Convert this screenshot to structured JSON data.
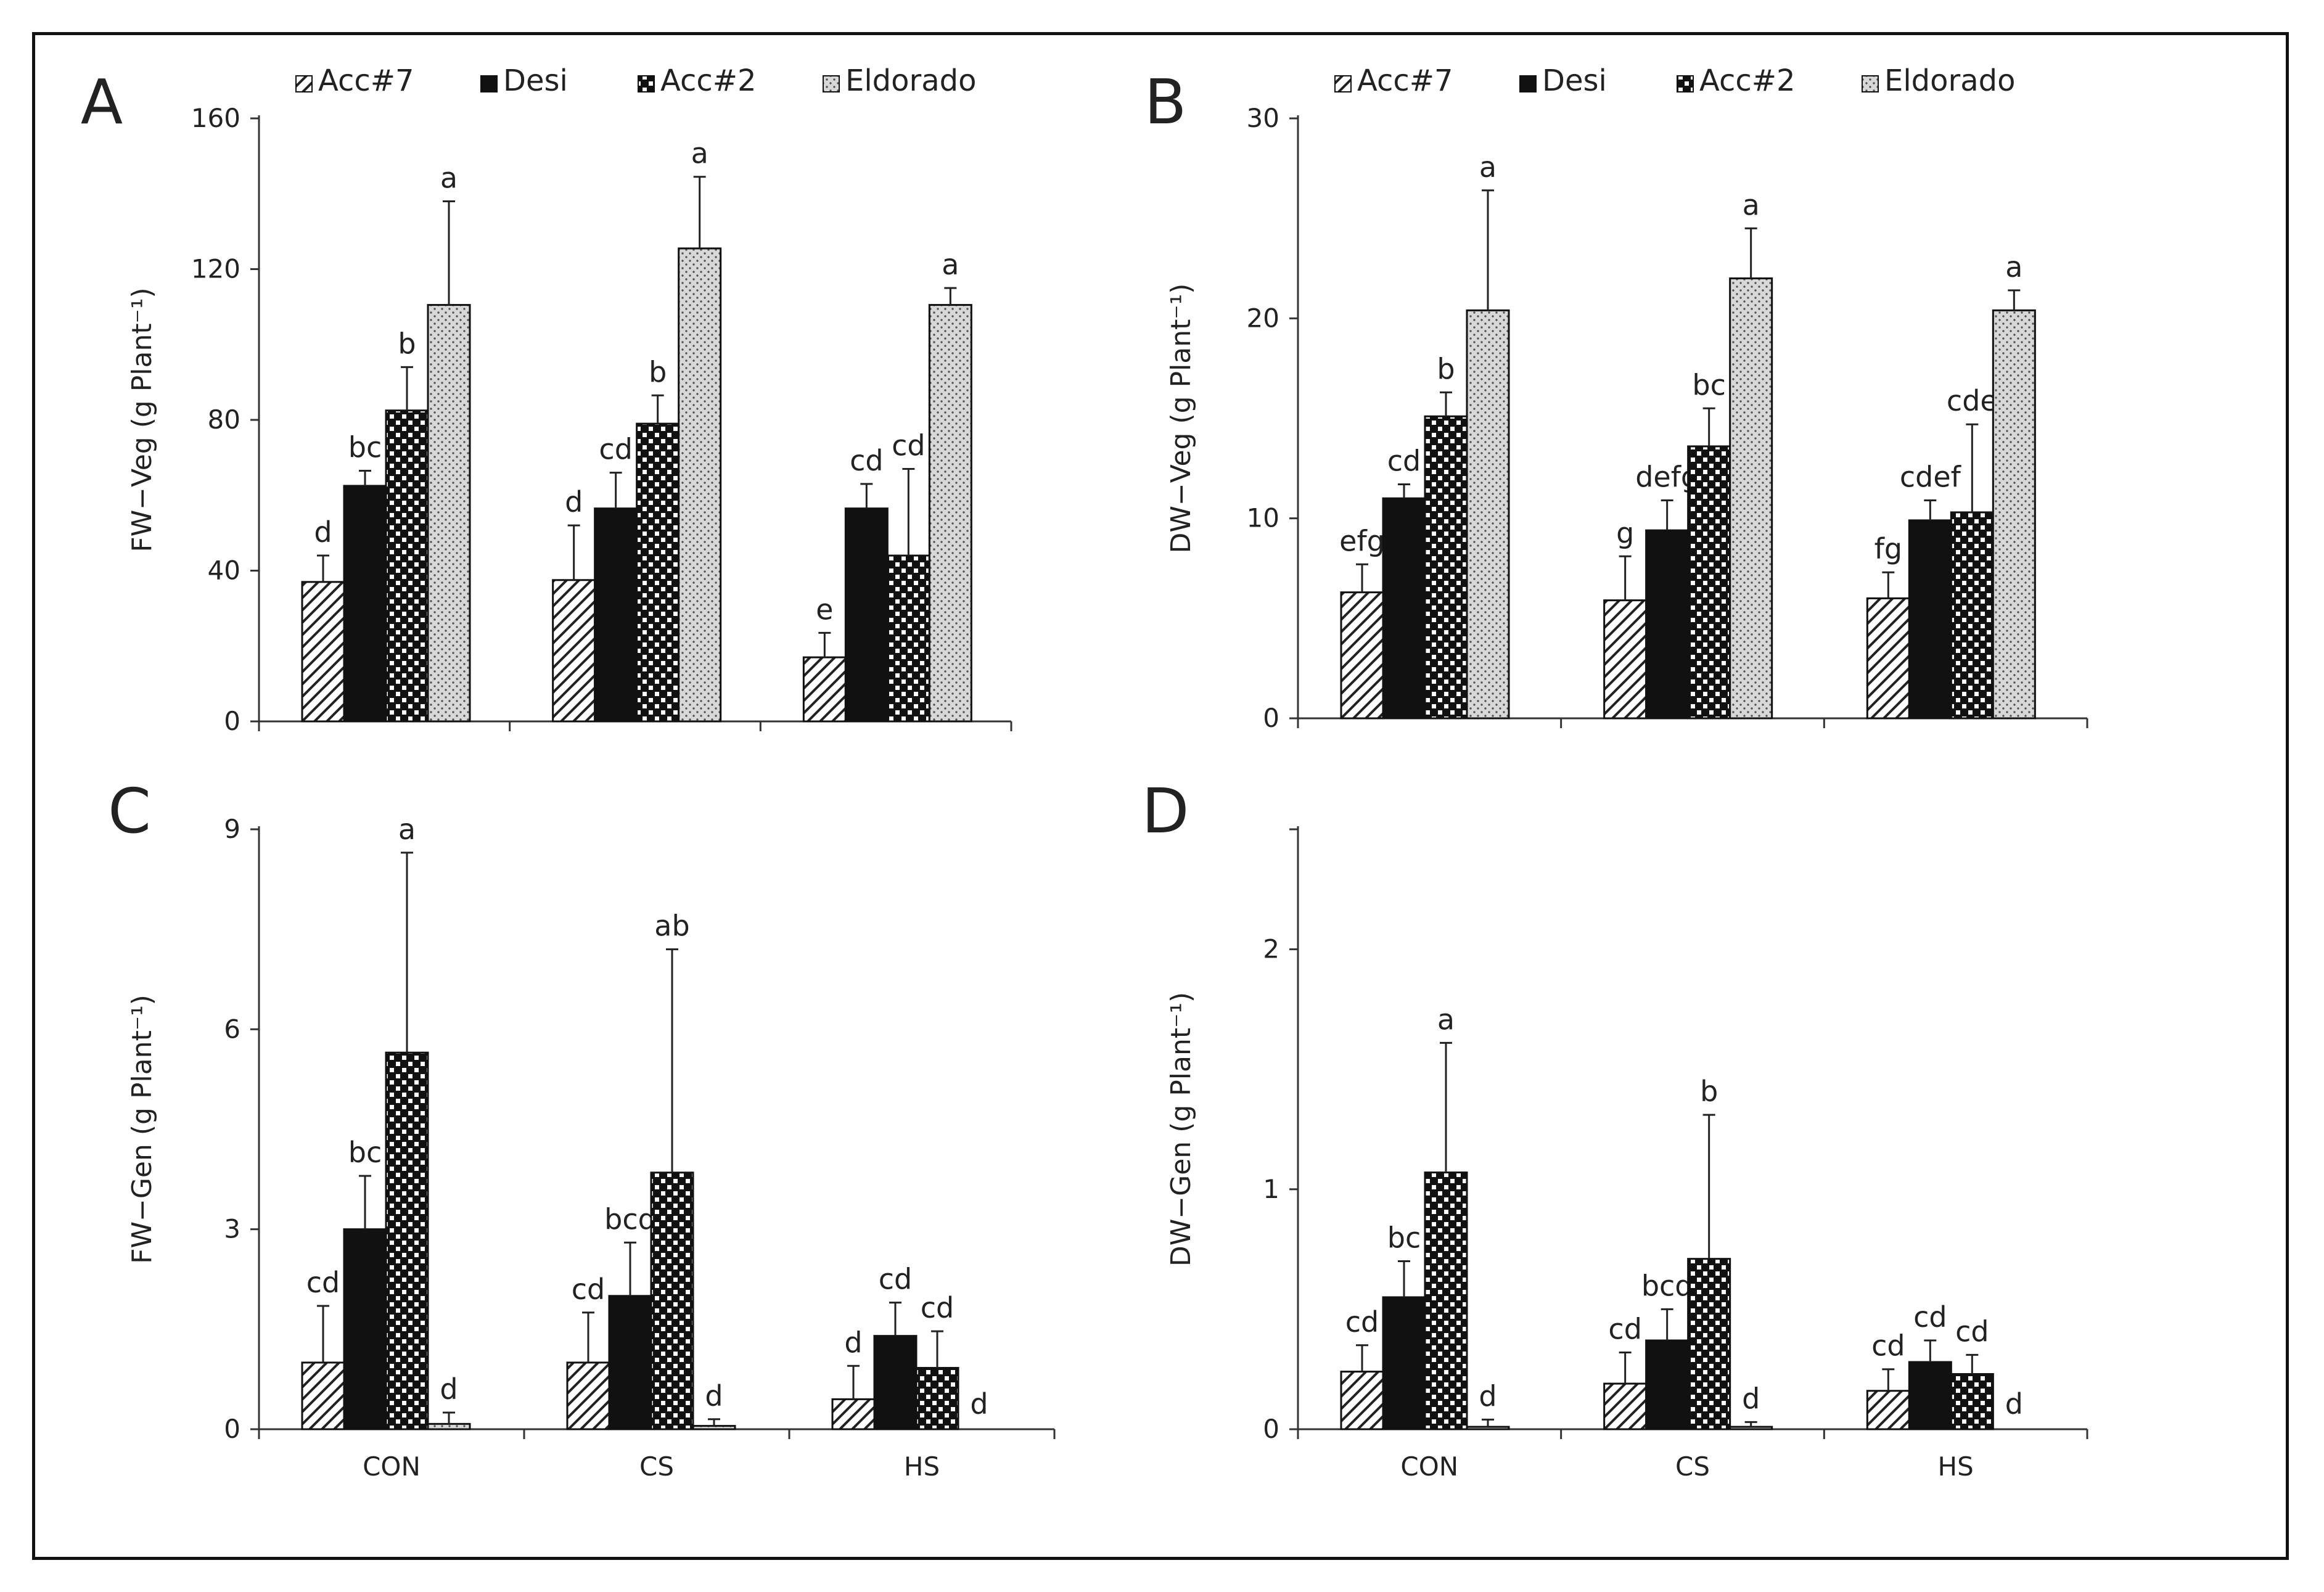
{
  "chart_data": [
    {
      "panel": "A",
      "type": "bar",
      "categories": [
        "CON",
        "CS",
        "HS"
      ],
      "ylabel": "FW−Veg (g Plant⁻¹)",
      "ylim": [
        0,
        160
      ],
      "yticks": [
        0,
        40,
        80,
        120,
        160
      ],
      "show_xlabels": false,
      "series": [
        {
          "name": "Acc#7",
          "values": [
            37,
            37.5,
            17
          ],
          "errors": [
            7,
            14.5,
            6.5
          ],
          "letters": [
            "d",
            "d",
            "e"
          ]
        },
        {
          "name": "Desi",
          "values": [
            62.5,
            56.5,
            56.5
          ],
          "errors": [
            4,
            9.5,
            6.5
          ],
          "letters": [
            "bc",
            "cd",
            "cd"
          ]
        },
        {
          "name": "Acc#2",
          "values": [
            82.5,
            79,
            44
          ],
          "errors": [
            11.5,
            7.5,
            23
          ],
          "letters": [
            "b",
            "b",
            "cd"
          ]
        },
        {
          "name": "Eldorado",
          "values": [
            110.5,
            125.5,
            110.5
          ],
          "errors": [
            27.5,
            19,
            4.5
          ],
          "letters": [
            "a",
            "a",
            "a"
          ]
        }
      ]
    },
    {
      "panel": "B",
      "type": "bar",
      "categories": [
        "CON",
        "CS",
        "HS"
      ],
      "ylabel": "DW−Veg (g Plant⁻¹)",
      "ylim": [
        0,
        30
      ],
      "yticks": [
        0,
        10,
        20,
        30
      ],
      "show_xlabels": false,
      "series": [
        {
          "name": "Acc#7",
          "values": [
            6.3,
            5.9,
            6.0
          ],
          "errors": [
            1.4,
            2.2,
            1.3
          ],
          "letters": [
            "efg",
            "g",
            "fg"
          ]
        },
        {
          "name": "Desi",
          "values": [
            11.0,
            9.4,
            9.9
          ],
          "errors": [
            0.7,
            1.5,
            1.0
          ],
          "letters": [
            "cd",
            "defg",
            "cdef"
          ]
        },
        {
          "name": "Acc#2",
          "values": [
            15.1,
            13.6,
            10.3
          ],
          "errors": [
            1.2,
            1.9,
            4.4
          ],
          "letters": [
            "b",
            "bc",
            "cde"
          ]
        },
        {
          "name": "Eldorado",
          "values": [
            20.4,
            22.0,
            20.4
          ],
          "errors": [
            6.0,
            2.5,
            1.0
          ],
          "letters": [
            "a",
            "a",
            "a"
          ]
        }
      ]
    },
    {
      "panel": "C",
      "type": "bar",
      "categories": [
        "CON",
        "CS",
        "HS"
      ],
      "ylabel": "FW−Gen (g Plant⁻¹)",
      "ylim": [
        0,
        9
      ],
      "yticks": [
        0,
        3,
        6,
        9
      ],
      "show_xlabels": true,
      "series": [
        {
          "name": "Acc#7",
          "values": [
            1.0,
            1.0,
            0.45
          ],
          "errors": [
            0.85,
            0.75,
            0.5
          ],
          "letters": [
            "cd",
            "cd",
            "d"
          ]
        },
        {
          "name": "Desi",
          "values": [
            3.0,
            2.0,
            1.4
          ],
          "errors": [
            0.8,
            0.8,
            0.5
          ],
          "letters": [
            "bc",
            "bcd",
            "cd"
          ]
        },
        {
          "name": "Acc#2",
          "values": [
            5.65,
            3.85,
            0.92
          ],
          "errors": [
            3.0,
            3.35,
            0.55
          ],
          "letters": [
            "a",
            "ab",
            "cd"
          ]
        },
        {
          "name": "Eldorado",
          "values": [
            0.08,
            0.05,
            0.0
          ],
          "errors": [
            0.17,
            0.1,
            0.0
          ],
          "letters": [
            "d",
            "d",
            "d"
          ]
        }
      ]
    },
    {
      "panel": "D",
      "type": "bar",
      "categories": [
        "CON",
        "CS",
        "HS"
      ],
      "ylabel": "DW−Gen (g Plant⁻¹)",
      "ylim": [
        0,
        2.5
      ],
      "yticks": [
        0,
        1,
        2
      ],
      "show_xlabels": true,
      "series": [
        {
          "name": "Acc#7",
          "values": [
            0.24,
            0.19,
            0.16
          ],
          "errors": [
            0.11,
            0.13,
            0.09
          ],
          "letters": [
            "cd",
            "cd",
            "cd"
          ]
        },
        {
          "name": "Desi",
          "values": [
            0.55,
            0.37,
            0.28
          ],
          "errors": [
            0.15,
            0.13,
            0.09
          ],
          "letters": [
            "bc",
            "bcd",
            "cd"
          ]
        },
        {
          "name": "Acc#2",
          "values": [
            1.07,
            0.71,
            0.23
          ],
          "errors": [
            0.54,
            0.6,
            0.08
          ],
          "letters": [
            "a",
            "b",
            "cd"
          ]
        },
        {
          "name": "Eldorado",
          "values": [
            0.01,
            0.01,
            0.0
          ],
          "errors": [
            0.03,
            0.02,
            0.0
          ],
          "letters": [
            "d",
            "d",
            "d"
          ]
        }
      ]
    }
  ]
}
